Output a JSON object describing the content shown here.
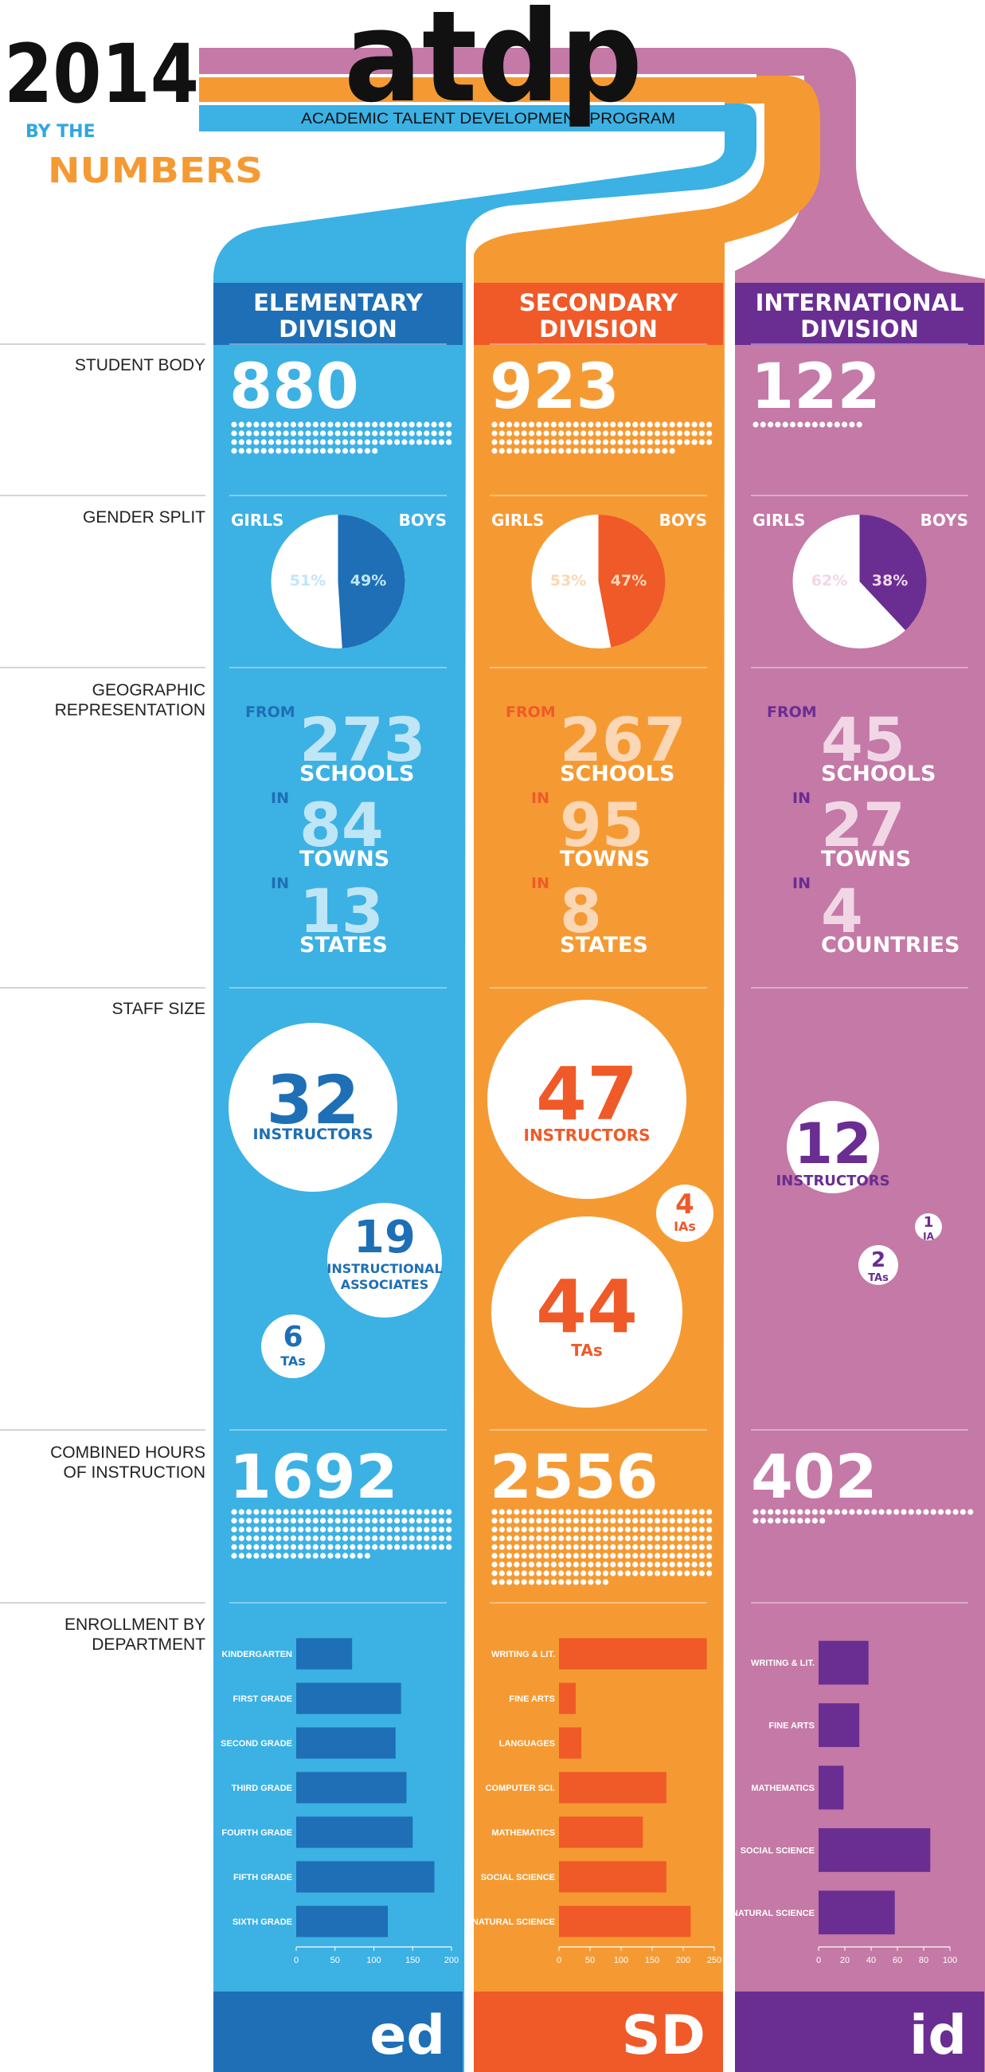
{
  "header": {
    "year": "2014",
    "logo": "atdp",
    "program": "ACADEMIC TALENT DEVELOPMENT PROGRAM",
    "by_the": "BY THE",
    "numbers": "NUMBERS"
  },
  "colors": {
    "elementary": "#3cb1e4",
    "elementary_dark": "#1e6fb5",
    "secondary": "#f59a33",
    "secondary_dark": "#ef5a28",
    "international": "#c479a6",
    "international_dark": "#6a2d92",
    "light_blue_text": "#bfe6f7",
    "light_orange_text": "#fcd7b5",
    "light_purple_text": "#f1d7e6"
  },
  "row_labels": {
    "student_body": "STUDENT BODY",
    "gender_split": "GENDER SPLIT",
    "geo_1": "GEOGRAPHIC",
    "geo_2": "REPRESENTATION",
    "staff_size": "STAFF SIZE",
    "hours_1": "COMBINED HOURS",
    "hours_2": "OF INSTRUCTION",
    "enroll_1": "ENROLLMENT BY",
    "enroll_2": "DEPARTMENT"
  },
  "common": {
    "girls": "GIRLS",
    "boys": "BOYS",
    "from": "FROM",
    "in": "IN",
    "schools": "SCHOOLS",
    "towns": "TOWNS"
  },
  "divisions": [
    {
      "header_1": "ELEMENTARY",
      "header_2": "DIVISION",
      "student_body": "880",
      "girls_pct": 51,
      "boys_pct": 49,
      "girls_label": "51%",
      "boys_label": "49%",
      "schools": "273",
      "towns": "84",
      "regions": "13",
      "region_word": "STATES",
      "instructors": "32",
      "instructors_label": "INSTRUCTORS",
      "associates": "19",
      "associates_label_1": "INSTRUCTIONAL",
      "associates_label_2": "ASSOCIATES",
      "tas": "6",
      "tas_label": "TAs",
      "hours": "1692",
      "footer": "ed"
    },
    {
      "header_1": "SECONDARY",
      "header_2": "DIVISION",
      "student_body": "923",
      "girls_pct": 53,
      "boys_pct": 47,
      "girls_label": "53%",
      "boys_label": "47%",
      "schools": "267",
      "towns": "95",
      "regions": "8",
      "region_word": "STATES",
      "instructors": "47",
      "instructors_label": "INSTRUCTORS",
      "ias": "4",
      "ias_label": "IAs",
      "tas": "44",
      "tas_label": "TAs",
      "hours": "2556",
      "footer": "SD"
    },
    {
      "header_1": "INTERNATIONAL",
      "header_2": "DIVISION",
      "student_body": "122",
      "girls_pct": 62,
      "boys_pct": 38,
      "girls_label": "62%",
      "boys_label": "38%",
      "schools": "45",
      "towns": "27",
      "regions": "4",
      "region_word": "COUNTRIES",
      "instructors": "12",
      "instructors_label": "INSTRUCTORS",
      "ia": "1",
      "ia_label": "IA",
      "tas": "2",
      "tas_label": "TAs",
      "hours": "402",
      "footer": "id"
    }
  ],
  "chart_data": [
    {
      "type": "bar",
      "orientation": "horizontal",
      "categories": [
        "KINDERGARTEN",
        "FIRST GRADE",
        "SECOND GRADE",
        "THIRD GRADE",
        "FOURTH GRADE",
        "FIFTH GRADE",
        "SIXTH GRADE"
      ],
      "values": [
        72,
        135,
        128,
        142,
        150,
        178,
        118
      ],
      "xlim": [
        0,
        200
      ],
      "ticks": [
        0,
        50,
        100,
        150,
        200
      ]
    },
    {
      "type": "bar",
      "orientation": "horizontal",
      "categories": [
        "WRITING & LIT.",
        "FINE ARTS",
        "LANGUAGES",
        "COMPUTER SCI.",
        "MATHEMATICS",
        "SOCIAL SCIENCE",
        "NATURAL SCIENCE"
      ],
      "values": [
        238,
        27,
        36,
        173,
        135,
        173,
        212
      ],
      "xlim": [
        0,
        250
      ],
      "ticks": [
        0,
        50,
        100,
        150,
        200,
        250
      ]
    },
    {
      "type": "bar",
      "orientation": "horizontal",
      "categories": [
        "WRITING & LIT.",
        "FINE ARTS",
        "MATHEMATICS",
        "SOCIAL SCIENCE",
        "NATURAL SCIENCE"
      ],
      "values": [
        38,
        31,
        19,
        85,
        58
      ],
      "xlim": [
        0,
        100
      ],
      "ticks": [
        0,
        20,
        40,
        60,
        80,
        100
      ]
    }
  ]
}
